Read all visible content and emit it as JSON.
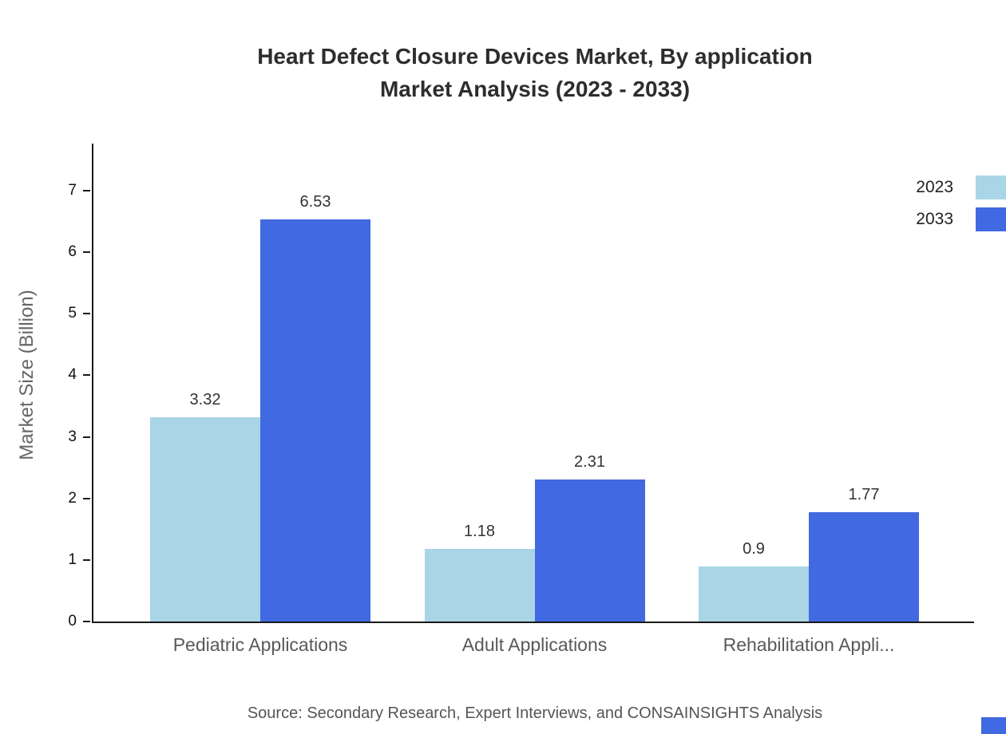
{
  "title": {
    "line1": "Heart Defect Closure Devices Market, By application",
    "line2": "Market Analysis (2023 - 2033)"
  },
  "source": "Source: Secondary Research, Expert Interviews, and CONSAINSIGHTS Analysis",
  "chart_data": {
    "type": "bar",
    "title": "Heart Defect Closure Devices Market, By application Market Analysis (2023 - 2033)",
    "ylabel": "Market Size (Billion)",
    "xlabel": "",
    "categories": [
      "Pediatric Applications",
      "Adult Applications",
      "Rehabilitation Appli..."
    ],
    "series": [
      {
        "name": "2023",
        "color": "#a9d5e6",
        "values": [
          3.32,
          1.18,
          0.9
        ],
        "labels": [
          "3.32",
          "1.18",
          "0.9"
        ]
      },
      {
        "name": "2033",
        "color": "#4169e1",
        "values": [
          6.53,
          2.31,
          1.77
        ],
        "labels": [
          "6.53",
          "2.31",
          "1.77"
        ]
      }
    ],
    "ylim": [
      0,
      7
    ],
    "yticks": [
      0,
      1,
      2,
      3,
      4,
      5,
      6,
      7
    ],
    "grid": false,
    "legend_position": "top-right"
  }
}
